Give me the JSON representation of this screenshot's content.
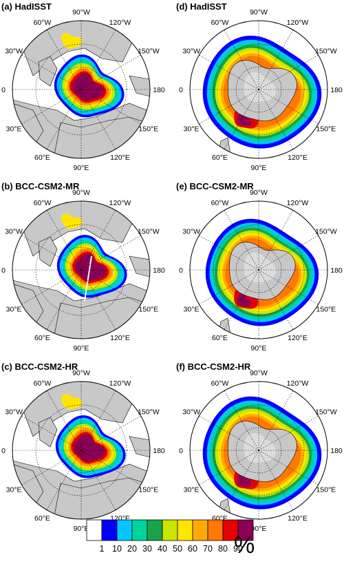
{
  "panels": [
    {
      "id": "a",
      "title": "(a) HadISST",
      "hemisphere": "north",
      "lon_labels": [
        "90°W",
        "120°W",
        "150°W",
        "180",
        "150°E",
        "120°E",
        "90°E",
        "60°E",
        "30°E",
        "0",
        "30°W",
        "60°W"
      ]
    },
    {
      "id": "b",
      "title": "(b) BCC-CSM2-MR",
      "hemisphere": "north",
      "lon_labels": [
        "90°W",
        "120°W",
        "150°W",
        "180",
        "150°E",
        "120°E",
        "90°E",
        "60°E",
        "30°E",
        "0",
        "30°W",
        "60°W"
      ]
    },
    {
      "id": "c",
      "title": "(c) BCC-CSM2-HR",
      "hemisphere": "north",
      "lon_labels": [
        "90°W",
        "120°W",
        "150°W",
        "180",
        "150°E",
        "120°E",
        "90°E",
        "60°E",
        "30°E",
        "0",
        "30°W",
        "60°W"
      ]
    },
    {
      "id": "d",
      "title": "(d) HadISST",
      "hemisphere": "south",
      "lon_labels": [
        "90°W",
        "120°W",
        "150°W",
        "180",
        "150°E",
        "120°E",
        "90°E",
        "60°E",
        "30°E",
        "0",
        "30°W",
        "60°W"
      ]
    },
    {
      "id": "e",
      "title": "(e) BCC-CSM2-MR",
      "hemisphere": "south",
      "lon_labels": [
        "90°W",
        "120°W",
        "150°W",
        "180",
        "150°E",
        "120°E",
        "90°E",
        "60°E",
        "30°E",
        "0",
        "30°W",
        "60°W"
      ]
    },
    {
      "id": "f",
      "title": "(f) BCC-CSM2-HR",
      "hemisphere": "south",
      "lon_labels": [
        "90°W",
        "120°W",
        "150°W",
        "180",
        "150°E",
        "120°E",
        "90°E",
        "60°E",
        "30°E",
        "0",
        "30°W",
        "60°W"
      ]
    }
  ],
  "colorbar": {
    "labels": [
      "1",
      "10",
      "20",
      "30",
      "40",
      "50",
      "60",
      "70",
      "80",
      "90"
    ],
    "colors": [
      "#ffffff",
      "#0000ff",
      "#00c8ff",
      "#00d49a",
      "#1aa34a",
      "#c8e600",
      "#ffe600",
      "#ffaa00",
      "#ff7800",
      "#e60000",
      "#8c0055"
    ],
    "unit": "%"
  },
  "colors": {
    "land": "#c8c8c8",
    "ocean": "#ffffff",
    "antarctic_ice_shelf": "#dcdcdc"
  }
}
